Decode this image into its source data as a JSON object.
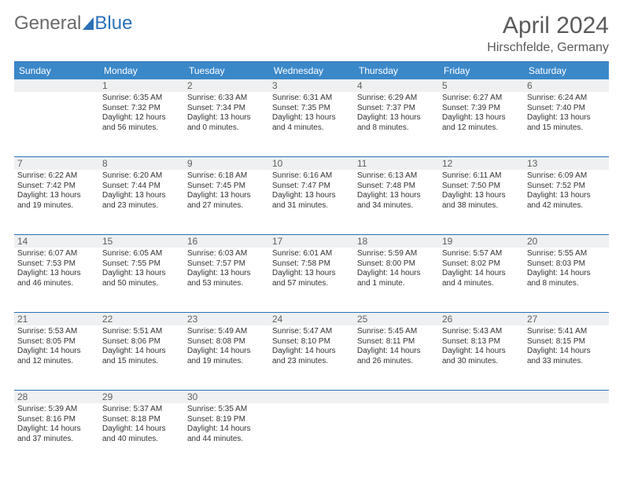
{
  "brand": {
    "part1": "General",
    "part2": "Blue"
  },
  "title": {
    "month": "April 2024",
    "location": "Hirschfelde, Germany"
  },
  "colors": {
    "header_bg": "#3b88c9",
    "rule": "#2a71b8",
    "daynum_bg": "#eef0f1",
    "text": "#333333",
    "subtext": "#606060",
    "page_bg": "#ffffff"
  },
  "dow": [
    "Sunday",
    "Monday",
    "Tuesday",
    "Wednesday",
    "Thursday",
    "Friday",
    "Saturday"
  ],
  "weeks": [
    {
      "nums": [
        "",
        "1",
        "2",
        "3",
        "4",
        "5",
        "6"
      ],
      "cells": [
        {},
        {
          "sr": "Sunrise: 6:35 AM",
          "ss": "Sunset: 7:32 PM",
          "dl": "Daylight: 12 hours and 56 minutes."
        },
        {
          "sr": "Sunrise: 6:33 AM",
          "ss": "Sunset: 7:34 PM",
          "dl": "Daylight: 13 hours and 0 minutes."
        },
        {
          "sr": "Sunrise: 6:31 AM",
          "ss": "Sunset: 7:35 PM",
          "dl": "Daylight: 13 hours and 4 minutes."
        },
        {
          "sr": "Sunrise: 6:29 AM",
          "ss": "Sunset: 7:37 PM",
          "dl": "Daylight: 13 hours and 8 minutes."
        },
        {
          "sr": "Sunrise: 6:27 AM",
          "ss": "Sunset: 7:39 PM",
          "dl": "Daylight: 13 hours and 12 minutes."
        },
        {
          "sr": "Sunrise: 6:24 AM",
          "ss": "Sunset: 7:40 PM",
          "dl": "Daylight: 13 hours and 15 minutes."
        }
      ]
    },
    {
      "nums": [
        "7",
        "8",
        "9",
        "10",
        "11",
        "12",
        "13"
      ],
      "cells": [
        {
          "sr": "Sunrise: 6:22 AM",
          "ss": "Sunset: 7:42 PM",
          "dl": "Daylight: 13 hours and 19 minutes."
        },
        {
          "sr": "Sunrise: 6:20 AM",
          "ss": "Sunset: 7:44 PM",
          "dl": "Daylight: 13 hours and 23 minutes."
        },
        {
          "sr": "Sunrise: 6:18 AM",
          "ss": "Sunset: 7:45 PM",
          "dl": "Daylight: 13 hours and 27 minutes."
        },
        {
          "sr": "Sunrise: 6:16 AM",
          "ss": "Sunset: 7:47 PM",
          "dl": "Daylight: 13 hours and 31 minutes."
        },
        {
          "sr": "Sunrise: 6:13 AM",
          "ss": "Sunset: 7:48 PM",
          "dl": "Daylight: 13 hours and 34 minutes."
        },
        {
          "sr": "Sunrise: 6:11 AM",
          "ss": "Sunset: 7:50 PM",
          "dl": "Daylight: 13 hours and 38 minutes."
        },
        {
          "sr": "Sunrise: 6:09 AM",
          "ss": "Sunset: 7:52 PM",
          "dl": "Daylight: 13 hours and 42 minutes."
        }
      ]
    },
    {
      "nums": [
        "14",
        "15",
        "16",
        "17",
        "18",
        "19",
        "20"
      ],
      "cells": [
        {
          "sr": "Sunrise: 6:07 AM",
          "ss": "Sunset: 7:53 PM",
          "dl": "Daylight: 13 hours and 46 minutes."
        },
        {
          "sr": "Sunrise: 6:05 AM",
          "ss": "Sunset: 7:55 PM",
          "dl": "Daylight: 13 hours and 50 minutes."
        },
        {
          "sr": "Sunrise: 6:03 AM",
          "ss": "Sunset: 7:57 PM",
          "dl": "Daylight: 13 hours and 53 minutes."
        },
        {
          "sr": "Sunrise: 6:01 AM",
          "ss": "Sunset: 7:58 PM",
          "dl": "Daylight: 13 hours and 57 minutes."
        },
        {
          "sr": "Sunrise: 5:59 AM",
          "ss": "Sunset: 8:00 PM",
          "dl": "Daylight: 14 hours and 1 minute."
        },
        {
          "sr": "Sunrise: 5:57 AM",
          "ss": "Sunset: 8:02 PM",
          "dl": "Daylight: 14 hours and 4 minutes."
        },
        {
          "sr": "Sunrise: 5:55 AM",
          "ss": "Sunset: 8:03 PM",
          "dl": "Daylight: 14 hours and 8 minutes."
        }
      ]
    },
    {
      "nums": [
        "21",
        "22",
        "23",
        "24",
        "25",
        "26",
        "27"
      ],
      "cells": [
        {
          "sr": "Sunrise: 5:53 AM",
          "ss": "Sunset: 8:05 PM",
          "dl": "Daylight: 14 hours and 12 minutes."
        },
        {
          "sr": "Sunrise: 5:51 AM",
          "ss": "Sunset: 8:06 PM",
          "dl": "Daylight: 14 hours and 15 minutes."
        },
        {
          "sr": "Sunrise: 5:49 AM",
          "ss": "Sunset: 8:08 PM",
          "dl": "Daylight: 14 hours and 19 minutes."
        },
        {
          "sr": "Sunrise: 5:47 AM",
          "ss": "Sunset: 8:10 PM",
          "dl": "Daylight: 14 hours and 23 minutes."
        },
        {
          "sr": "Sunrise: 5:45 AM",
          "ss": "Sunset: 8:11 PM",
          "dl": "Daylight: 14 hours and 26 minutes."
        },
        {
          "sr": "Sunrise: 5:43 AM",
          "ss": "Sunset: 8:13 PM",
          "dl": "Daylight: 14 hours and 30 minutes."
        },
        {
          "sr": "Sunrise: 5:41 AM",
          "ss": "Sunset: 8:15 PM",
          "dl": "Daylight: 14 hours and 33 minutes."
        }
      ]
    },
    {
      "nums": [
        "28",
        "29",
        "30",
        "",
        "",
        "",
        ""
      ],
      "cells": [
        {
          "sr": "Sunrise: 5:39 AM",
          "ss": "Sunset: 8:16 PM",
          "dl": "Daylight: 14 hours and 37 minutes."
        },
        {
          "sr": "Sunrise: 5:37 AM",
          "ss": "Sunset: 8:18 PM",
          "dl": "Daylight: 14 hours and 40 minutes."
        },
        {
          "sr": "Sunrise: 5:35 AM",
          "ss": "Sunset: 8:19 PM",
          "dl": "Daylight: 14 hours and 44 minutes."
        },
        {},
        {},
        {},
        {}
      ]
    }
  ]
}
